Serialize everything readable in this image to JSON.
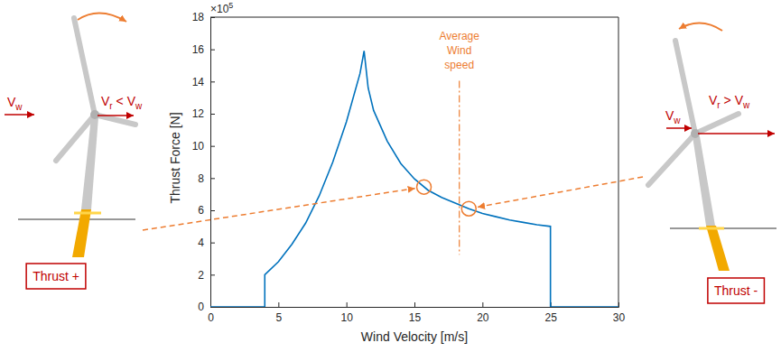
{
  "chart_data": {
    "type": "line",
    "xlabel": "Wind Velocity [m/s]",
    "ylabel": "Thrust Force [N]",
    "y_scale_label": {
      "text": "×10",
      "exponent": 5
    },
    "x": [
      0,
      4,
      4,
      5,
      6,
      7,
      8,
      9,
      10,
      11,
      11.3,
      11.6,
      12,
      13,
      14,
      15,
      16,
      17,
      18,
      19,
      20,
      21,
      22,
      23,
      24,
      25,
      25,
      30
    ],
    "values": [
      0,
      0,
      2,
      2.8,
      3.9,
      5.2,
      6.9,
      9,
      11.5,
      14.5,
      15.9,
      13.6,
      12.2,
      10.3,
      8.9,
      7.95,
      7.25,
      6.8,
      6.45,
      6.1,
      5.8,
      5.6,
      5.4,
      5.25,
      5.1,
      5.0,
      0,
      0
    ],
    "color": "#0072bd",
    "xlim": [
      0,
      30
    ],
    "ylim": [
      0,
      18
    ],
    "xticks": [
      0,
      5,
      10,
      15,
      20,
      25,
      30
    ],
    "yticks": [
      0,
      2,
      4,
      6,
      8,
      10,
      12,
      14,
      16,
      18
    ],
    "average_wind_speed": {
      "x": 18.3,
      "label": [
        "Average",
        "Wind",
        "speed"
      ],
      "color": "#ed7d31"
    },
    "highlights": [
      {
        "x": 15.7,
        "y": 7.45,
        "thrust_label": "Thrust +",
        "wind_label": [
          [
            "V",
            "w"
          ]
        ],
        "rotor_label": [
          [
            "V",
            "r"
          ],
          [
            " < V",
            "w"
          ]
        ]
      },
      {
        "x": 19,
        "y": 6.1,
        "thrust_label": "Thrust -",
        "wind_label": [
          [
            "V",
            "w"
          ]
        ],
        "rotor_label": [
          [
            "V",
            "r"
          ],
          [
            " > V",
            "w"
          ]
        ]
      }
    ]
  }
}
